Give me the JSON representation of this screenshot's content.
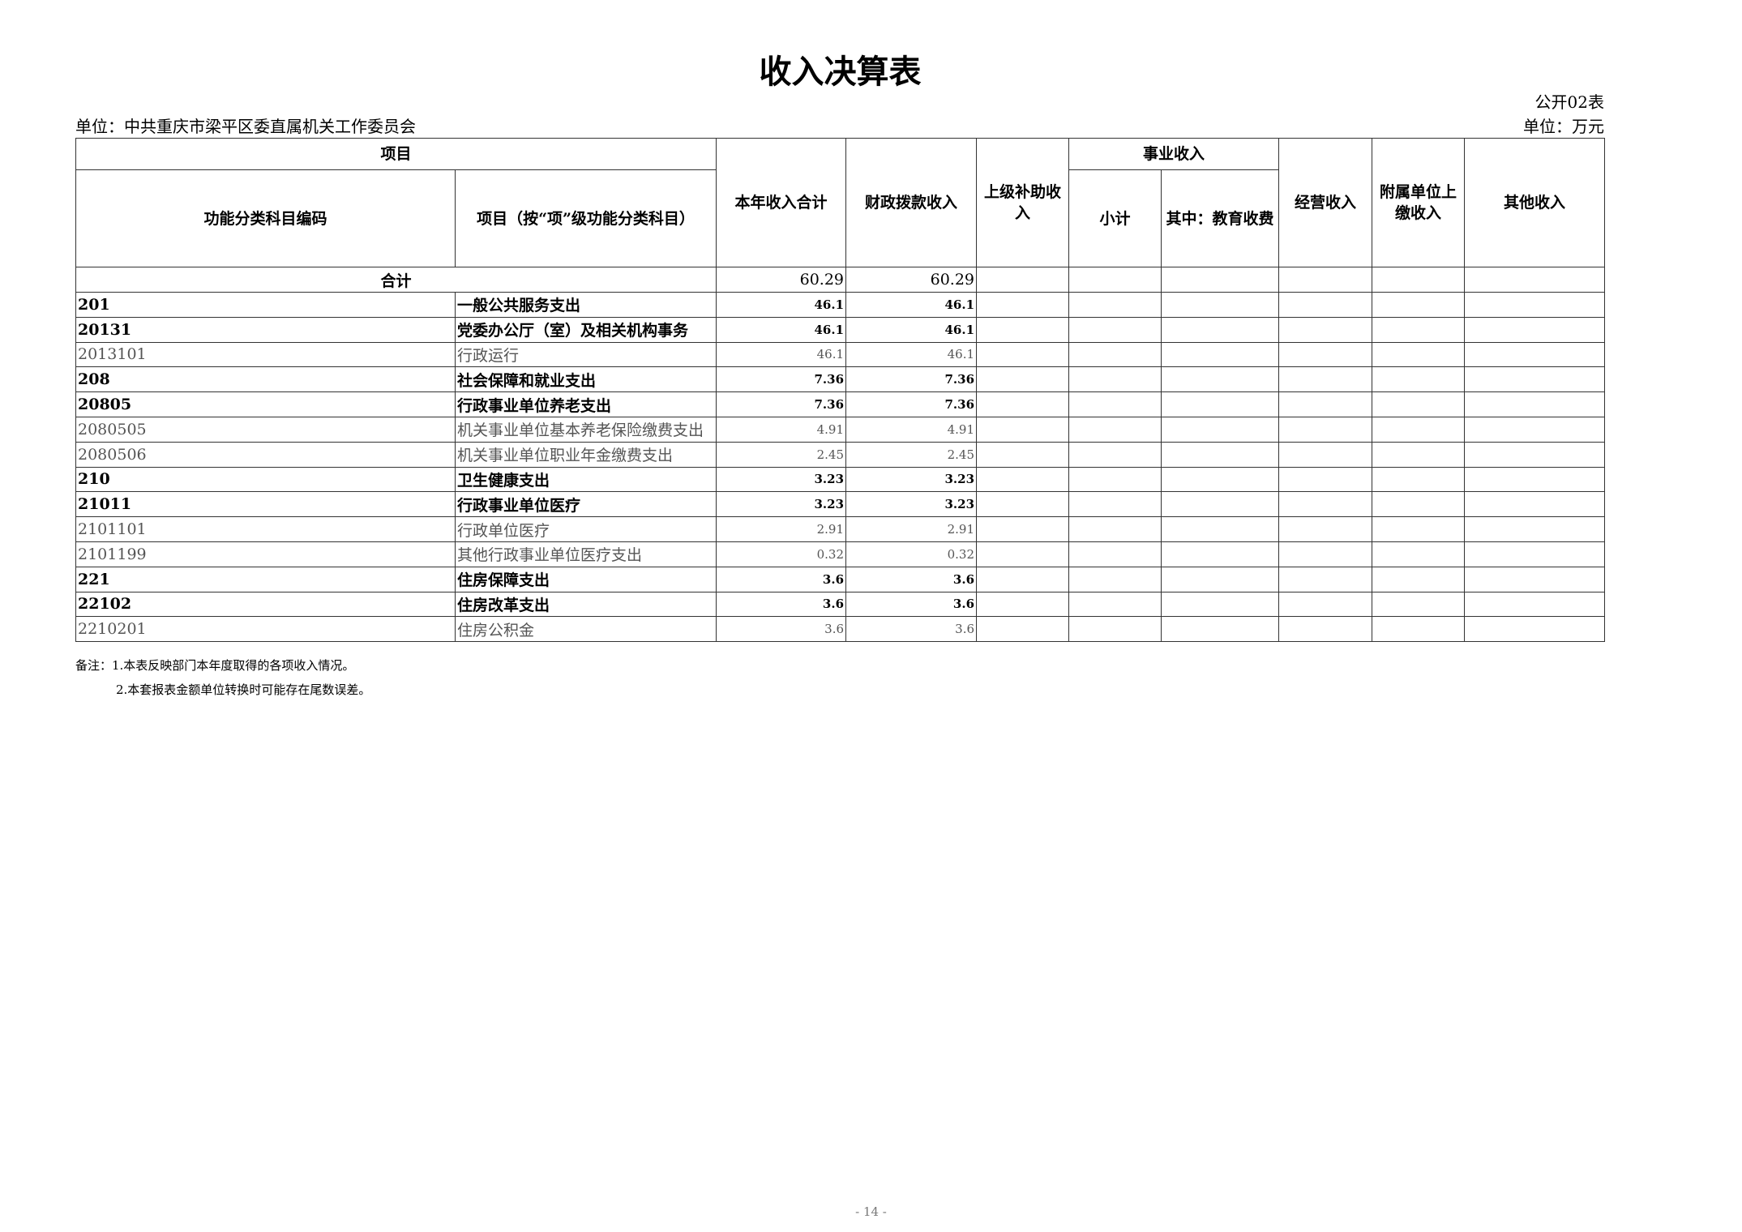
{
  "title": "收入决算表",
  "form_no": "公开02表",
  "unit_org": "单位：中共重庆市梁平区委直属机关工作委员会",
  "unit_money": "单位：万元",
  "headers": {
    "item": "项目",
    "code": "功能分类科目编码",
    "name": "项目（按“项”级功能分类科目）",
    "total": "本年收入合计",
    "fiscal": "财政拨款收入",
    "superior": "上级补助收入",
    "career": "事业收入",
    "subtotal": "小计",
    "edu": "其中：教育收费",
    "business": "经营收入",
    "affiliated": "附属单位上缴收入",
    "other": "其他收入"
  },
  "total_row": {
    "label": "合计",
    "total": "60.29",
    "fiscal": "60.29"
  },
  "rows": [
    {
      "code": "201",
      "name": "一般公共服务支出",
      "total": "46.1",
      "fiscal": "46.1",
      "level": 1
    },
    {
      "code": "20131",
      "name": "党委办公厅（室）及相关机构事务",
      "total": "46.1",
      "fiscal": "46.1",
      "level": 2
    },
    {
      "code": "2013101",
      "name": "行政运行",
      "total": "46.1",
      "fiscal": "46.1",
      "level": 3
    },
    {
      "code": "208",
      "name": "社会保障和就业支出",
      "total": "7.36",
      "fiscal": "7.36",
      "level": 1
    },
    {
      "code": "20805",
      "name": "行政事业单位养老支出",
      "total": "7.36",
      "fiscal": "7.36",
      "level": 2
    },
    {
      "code": "2080505",
      "name": "机关事业单位基本养老保险缴费支出",
      "total": "4.91",
      "fiscal": "4.91",
      "level": 3
    },
    {
      "code": "2080506",
      "name": "机关事业单位职业年金缴费支出",
      "total": "2.45",
      "fiscal": "2.45",
      "level": 3
    },
    {
      "code": "210",
      "name": "卫生健康支出",
      "total": "3.23",
      "fiscal": "3.23",
      "level": 1
    },
    {
      "code": "21011",
      "name": "行政事业单位医疗",
      "total": "3.23",
      "fiscal": "3.23",
      "level": 2
    },
    {
      "code": "2101101",
      "name": "行政单位医疗",
      "total": "2.91",
      "fiscal": "2.91",
      "level": 3
    },
    {
      "code": "2101199",
      "name": "其他行政事业单位医疗支出",
      "total": "0.32",
      "fiscal": "0.32",
      "level": 3
    },
    {
      "code": "221",
      "name": "住房保障支出",
      "total": "3.6",
      "fiscal": "3.6",
      "level": 1
    },
    {
      "code": "22102",
      "name": "住房改革支出",
      "total": "3.6",
      "fiscal": "3.6",
      "level": 2
    },
    {
      "code": "2210201",
      "name": "住房公积金",
      "total": "3.6",
      "fiscal": "3.6",
      "level": 3
    }
  ],
  "notes": [
    "备注：1.本表反映部门本年度取得的各项收入情况。",
    "2.本套报表金额单位转换时可能存在尾数误差。"
  ],
  "page_number": "- 14 -"
}
